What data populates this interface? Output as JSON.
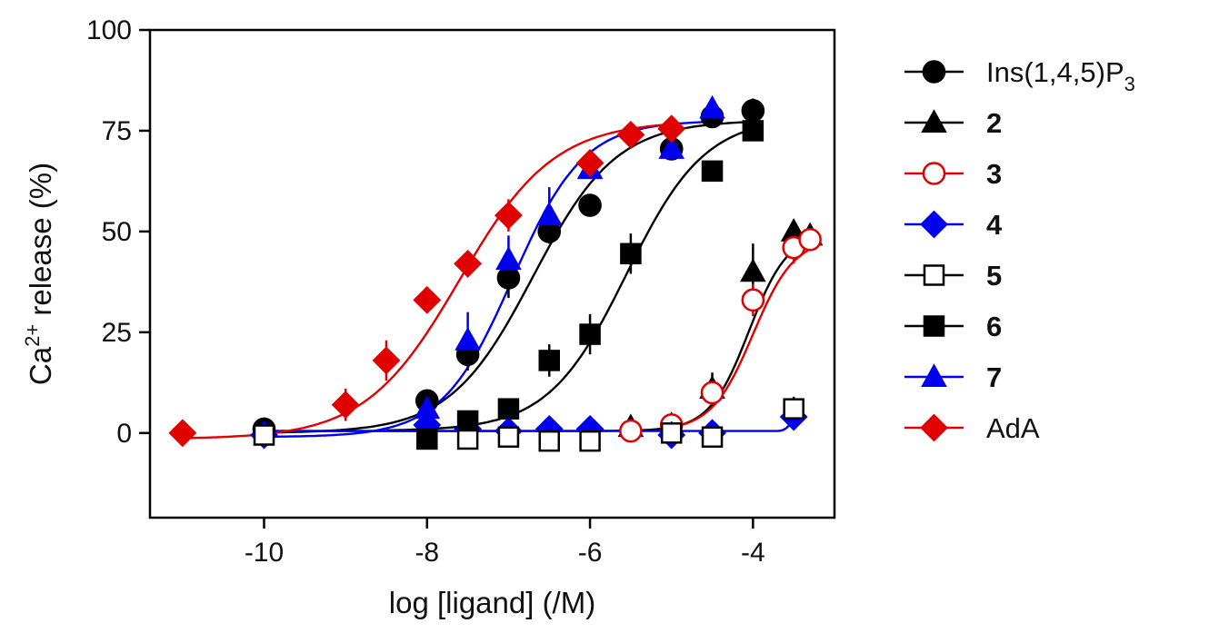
{
  "chart_data": {
    "type": "scatter",
    "xlabel": "log [ligand] (/M)",
    "ylabel": {
      "base": "Ca",
      "sup": "2+",
      "rest": " release (%)"
    },
    "xlim": [
      -11.4,
      -3.0
    ],
    "ylim": [
      -21,
      100
    ],
    "xticks": [
      -10,
      -8,
      -6,
      -4
    ],
    "yticks": [
      0,
      25,
      50,
      75,
      100
    ],
    "grid": false,
    "legend_position": "right",
    "series": [
      {
        "name": "Ins(1,4,5)P",
        "name_sub": "3",
        "bold": false,
        "color": "#000000",
        "marker": "circle",
        "filled": true,
        "fit": {
          "bottom": 0,
          "top": 77.6,
          "logEC50": -6.7,
          "hill": 0.85,
          "xmin": -10,
          "xmax": -4
        },
        "points": [
          {
            "x": -10,
            "y": 1,
            "err": 0
          },
          {
            "x": -8,
            "y": 8,
            "err": 2
          },
          {
            "x": -7.5,
            "y": 19.5,
            "err": 4
          },
          {
            "x": -7,
            "y": 38.5,
            "err": 5
          },
          {
            "x": -6.5,
            "y": 50,
            "err": 3
          },
          {
            "x": -6,
            "y": 56.5,
            "err": 2
          },
          {
            "x": -5,
            "y": 70.5,
            "err": 2
          },
          {
            "x": -4.5,
            "y": 78.5,
            "err": 2
          },
          {
            "x": -4,
            "y": 80,
            "err": 3
          }
        ]
      },
      {
        "name": "2",
        "bold": true,
        "color": "#000000",
        "marker": "triangle",
        "filled": true,
        "fit": {
          "bottom": 0.5,
          "top": 50,
          "logEC50": -4.05,
          "hill": 1.8,
          "xmin": -10,
          "xmax": -3.3
        },
        "points": [
          {
            "x": -5.5,
            "y": 1.5,
            "err": 0
          },
          {
            "x": -5,
            "y": 2,
            "err": 2
          },
          {
            "x": -4.5,
            "y": 11,
            "err": 4
          },
          {
            "x": -4,
            "y": 40,
            "err": 7
          },
          {
            "x": -3.5,
            "y": 50,
            "err": 3
          },
          {
            "x": -3.3,
            "y": 49,
            "err": 2
          }
        ]
      },
      {
        "name": "3",
        "bold": true,
        "color": "#e00000",
        "marker": "circle",
        "filled": false,
        "fit": {
          "bottom": 0.5,
          "top": 48.5,
          "logEC50": -4.0,
          "hill": 1.7,
          "xmin": -5,
          "xmax": -3.3
        },
        "points": [
          {
            "x": -5.5,
            "y": 0.5,
            "err": 0
          },
          {
            "x": -5,
            "y": 2,
            "err": 0
          },
          {
            "x": -4.5,
            "y": 10,
            "err": 2
          },
          {
            "x": -4,
            "y": 33,
            "err": 4
          },
          {
            "x": -3.5,
            "y": 46,
            "err": 4
          },
          {
            "x": -3.3,
            "y": 48,
            "err": 2
          }
        ]
      },
      {
        "name": "4",
        "bold": true,
        "color": "#0000ee",
        "marker": "diamond",
        "filled": true,
        "fit": null,
        "points": [
          {
            "x": -10,
            "y": -0.5,
            "err": 0
          },
          {
            "x": -8,
            "y": 2,
            "err": 0
          },
          {
            "x": -7.5,
            "y": 1,
            "err": 0
          },
          {
            "x": -7,
            "y": 0.5,
            "err": 0
          },
          {
            "x": -6.5,
            "y": 1,
            "err": 0
          },
          {
            "x": -6,
            "y": 1,
            "err": 0
          },
          {
            "x": -5,
            "y": -0.5,
            "err": 0
          },
          {
            "x": -4.5,
            "y": 0,
            "err": 0
          },
          {
            "x": -3.5,
            "y": 4,
            "err": 0
          }
        ]
      },
      {
        "name": "5",
        "bold": true,
        "color": "#000000",
        "marker": "square",
        "filled": false,
        "fit": null,
        "points": [
          {
            "x": -10,
            "y": -0.5,
            "err": 0
          },
          {
            "x": -7.5,
            "y": -1.5,
            "err": 0
          },
          {
            "x": -7,
            "y": -1,
            "err": 0
          },
          {
            "x": -6.5,
            "y": -2,
            "err": 0
          },
          {
            "x": -6,
            "y": -2,
            "err": 0
          },
          {
            "x": -5,
            "y": 0,
            "err": 0
          },
          {
            "x": -4.5,
            "y": -1,
            "err": 0
          },
          {
            "x": -3.5,
            "y": 6,
            "err": 3
          }
        ]
      },
      {
        "name": "6",
        "bold": true,
        "color": "#000000",
        "marker": "square",
        "filled": true,
        "fit": {
          "bottom": 0.5,
          "top": 78.5,
          "logEC50": -5.55,
          "hill": 0.9,
          "xmin": -8.5,
          "xmax": -4
        },
        "points": [
          {
            "x": -8,
            "y": -1.5,
            "err": 0
          },
          {
            "x": -7.5,
            "y": 3,
            "err": 0
          },
          {
            "x": -7,
            "y": 6,
            "err": 0
          },
          {
            "x": -6.5,
            "y": 18,
            "err": 4
          },
          {
            "x": -6,
            "y": 24.5,
            "err": 5
          },
          {
            "x": -5.5,
            "y": 44.5,
            "err": 5
          },
          {
            "x": -4.5,
            "y": 65,
            "err": 2
          },
          {
            "x": -4,
            "y": 75,
            "err": 2
          }
        ]
      },
      {
        "name": "7",
        "bold": true,
        "color": "#0000ee",
        "marker": "triangle",
        "filled": true,
        "fit": {
          "bottom": -1,
          "top": 77.5,
          "logEC50": -6.95,
          "hill": 1.0,
          "xmin": -10,
          "xmax": -4.5
        },
        "blue_baseline": {
          "y": 0.5,
          "xmin": -10,
          "xmax": -3.7,
          "end_y": 4.5,
          "end_x": -3.5
        },
        "points": [
          {
            "x": -8,
            "y": 6,
            "err": 3
          },
          {
            "x": -7.5,
            "y": 23,
            "err": 7
          },
          {
            "x": -7,
            "y": 43,
            "err": 6
          },
          {
            "x": -6.5,
            "y": 54,
            "err": 7
          },
          {
            "x": -6,
            "y": 65.5,
            "err": 2
          },
          {
            "x": -5,
            "y": 70.5,
            "err": 2
          },
          {
            "x": -4.5,
            "y": 80.5,
            "err": 2
          }
        ]
      },
      {
        "name": "AdA",
        "bold": false,
        "color": "#e00000",
        "marker": "diamond",
        "filled": true,
        "fit": {
          "bottom": -1.5,
          "top": 77.5,
          "logEC50": -7.6,
          "hill": 0.75,
          "xmin": -11,
          "xmax": -5
        },
        "points": [
          {
            "x": -11,
            "y": 0,
            "err": 0
          },
          {
            "x": -9,
            "y": 7,
            "err": 4
          },
          {
            "x": -8.5,
            "y": 18,
            "err": 5
          },
          {
            "x": -8,
            "y": 33,
            "err": 3
          },
          {
            "x": -7.5,
            "y": 42,
            "err": 3
          },
          {
            "x": -7,
            "y": 54,
            "err": 4
          },
          {
            "x": -6,
            "y": 67,
            "err": 2
          },
          {
            "x": -5.5,
            "y": 74,
            "err": 2
          },
          {
            "x": -5,
            "y": 75.5,
            "err": 2
          }
        ]
      }
    ]
  }
}
